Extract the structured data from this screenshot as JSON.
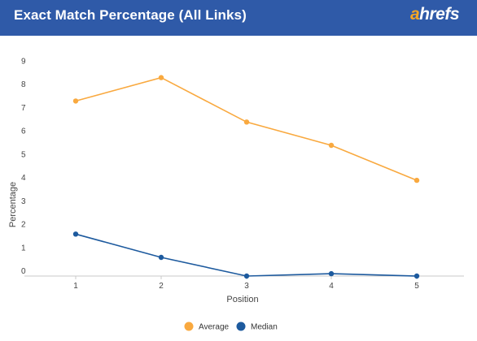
{
  "header": {
    "title": "Exact Match Percentage (All Links)",
    "brand_a": "a",
    "brand_rest": "hrefs",
    "background": "#2f5aa8",
    "brand_accent": "#f5a623"
  },
  "chart_data": {
    "type": "line",
    "title": "Exact Match Percentage (All Links)",
    "xlabel": "Position",
    "ylabel": "Percentage",
    "x": [
      1,
      2,
      3,
      4,
      5
    ],
    "ylim": [
      0,
      9
    ],
    "yticks": [
      0,
      1,
      2,
      3,
      4,
      5,
      6,
      7,
      8,
      9
    ],
    "grid": false,
    "legend_position": "bottom",
    "series": [
      {
        "name": "Average",
        "color": "#f9a93f",
        "values": [
          7.5,
          8.5,
          6.6,
          5.6,
          4.1
        ]
      },
      {
        "name": "Median",
        "color": "#1d5a9e",
        "values": [
          1.8,
          0.8,
          0.0,
          0.1,
          0.0
        ]
      }
    ]
  }
}
